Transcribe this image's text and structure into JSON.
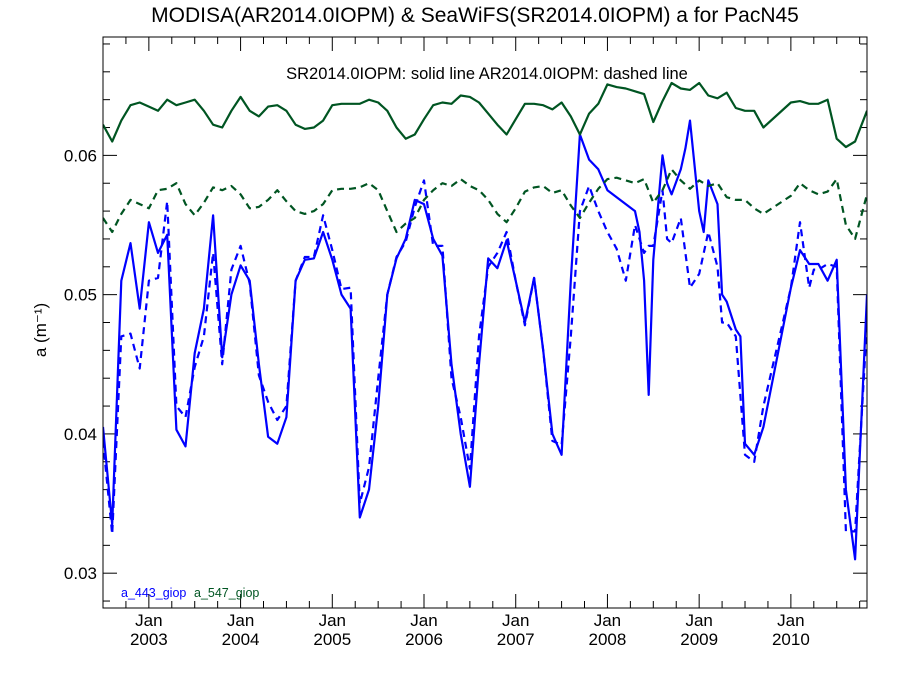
{
  "chart_data": {
    "type": "line",
    "title": "MODISA(AR2014.0IOPM) & SeaWiFS(SR2014.0IOPM)  a for PacN45",
    "subtitle": "SR2014.0IOPM: solid line   AR2014.0IOPM: dashed line",
    "ylabel": "a (m⁻¹)",
    "xlabel": "",
    "xlim": [
      2002.5,
      2010.83
    ],
    "ylim": [
      0.0275,
      0.0685
    ],
    "yticks": [
      "0.03",
      "0.04",
      "0.05",
      "0.06"
    ],
    "ytick_values": [
      0.03,
      0.04,
      0.05,
      0.06
    ],
    "xticks": [
      {
        "month": "Jan",
        "year": "2003",
        "value": 2003.0
      },
      {
        "month": "Jan",
        "year": "2004",
        "value": 2004.0
      },
      {
        "month": "Jan",
        "year": "2005",
        "value": 2005.0
      },
      {
        "month": "Jan",
        "year": "2006",
        "value": 2006.0
      },
      {
        "month": "Jan",
        "year": "2007",
        "value": 2007.0
      },
      {
        "month": "Jan",
        "year": "2008",
        "value": 2008.0
      },
      {
        "month": "Jan",
        "year": "2009",
        "value": 2009.0
      },
      {
        "month": "Jan",
        "year": "2010",
        "value": 2010.0
      }
    ],
    "legend": [
      {
        "label": "a_443_giop",
        "color": "#0000ff"
      },
      {
        "label": "a_547_giop",
        "color": "#005522"
      }
    ],
    "legend_placement": "bottom-left",
    "series": [
      {
        "name": "a_443_giop",
        "source": "SR2014.0IOPM",
        "style": "solid",
        "color": "#0000ff",
        "x": [
          2002.5,
          2002.6,
          2002.7,
          2002.8,
          2002.9,
          2003.0,
          2003.1,
          2003.2,
          2003.3,
          2003.4,
          2003.5,
          2003.6,
          2003.7,
          2003.8,
          2003.9,
          2004.0,
          2004.1,
          2004.2,
          2004.3,
          2004.4,
          2004.5,
          2004.6,
          2004.7,
          2004.8,
          2004.9,
          2005.0,
          2005.1,
          2005.2,
          2005.3,
          2005.4,
          2005.5,
          2005.6,
          2005.7,
          2005.8,
          2005.9,
          2006.0,
          2006.1,
          2006.2,
          2006.3,
          2006.4,
          2006.5,
          2006.6,
          2006.7,
          2006.8,
          2006.9,
          2007.0,
          2007.1,
          2007.2,
          2007.3,
          2007.4,
          2007.5,
          2007.6,
          2007.7,
          2007.8,
          2007.9,
          2008.0,
          2008.3,
          2008.35,
          2008.4,
          2008.45,
          2008.5,
          2008.6,
          2008.65,
          2008.7,
          2008.8,
          2008.85,
          2008.9,
          2009.0,
          2009.05,
          2009.1,
          2009.2,
          2009.25,
          2009.3,
          2009.4,
          2009.45,
          2009.5,
          2009.6,
          2009.7,
          2010.0,
          2010.1,
          2010.2,
          2010.25,
          2010.3,
          2010.4,
          2010.5,
          2010.6,
          2010.7,
          2010.83
        ],
        "y": [
          0.0405,
          0.0335,
          0.051,
          0.0537,
          0.049,
          0.0552,
          0.053,
          0.0543,
          0.0403,
          0.0391,
          0.0458,
          0.049,
          0.0557,
          0.0455,
          0.05,
          0.0521,
          0.051,
          0.045,
          0.0398,
          0.0393,
          0.0412,
          0.051,
          0.0525,
          0.0526,
          0.0545,
          0.0525,
          0.05,
          0.049,
          0.034,
          0.036,
          0.042,
          0.05,
          0.0526,
          0.054,
          0.0568,
          0.0565,
          0.054,
          0.0528,
          0.045,
          0.04,
          0.0362,
          0.045,
          0.0526,
          0.0519,
          0.0539,
          0.051,
          0.048,
          0.0512,
          0.046,
          0.04,
          0.0385,
          0.051,
          0.0615,
          0.0597,
          0.059,
          0.0575,
          0.056,
          0.0545,
          0.051,
          0.0428,
          0.0525,
          0.06,
          0.058,
          0.0572,
          0.059,
          0.0605,
          0.0625,
          0.056,
          0.0545,
          0.0582,
          0.0565,
          0.05,
          0.0495,
          0.0475,
          0.047,
          0.0393,
          0.0385,
          0.0405,
          0.0505,
          0.0532,
          0.0522,
          0.0522,
          0.0522,
          0.051,
          0.0525,
          0.036,
          0.031,
          0.05
        ]
      },
      {
        "name": "a_443_giop",
        "source": "AR2014.0IOPM",
        "style": "dashed",
        "color": "#0000ff",
        "x": [
          2002.5,
          2002.6,
          2002.7,
          2002.8,
          2002.9,
          2003.0,
          2003.1,
          2003.2,
          2003.3,
          2003.4,
          2003.5,
          2003.6,
          2003.7,
          2003.8,
          2003.9,
          2004.0,
          2004.1,
          2004.2,
          2004.3,
          2004.4,
          2004.5,
          2004.6,
          2004.7,
          2004.8,
          2004.9,
          2005.0,
          2005.1,
          2005.2,
          2005.3,
          2005.4,
          2005.5,
          2005.6,
          2005.7,
          2005.8,
          2005.9,
          2006.0,
          2006.1,
          2006.2,
          2006.3,
          2006.4,
          2006.5,
          2006.6,
          2006.7,
          2006.8,
          2006.9,
          2007.0,
          2007.1,
          2007.2,
          2007.3,
          2007.4,
          2007.5,
          2007.6,
          2007.7,
          2007.8,
          2007.9,
          2008.0,
          2008.1,
          2008.2,
          2008.3,
          2008.4,
          2008.45,
          2008.5,
          2008.6,
          2008.65,
          2008.7,
          2008.8,
          2008.9,
          2009.0,
          2009.1,
          2009.2,
          2009.25,
          2009.3,
          2009.4,
          2009.5,
          2009.6,
          2009.7,
          2010.0,
          2010.1,
          2010.2,
          2010.25,
          2010.3,
          2010.4,
          2010.5,
          2010.6,
          2010.7,
          2010.83
        ],
        "y": [
          0.0395,
          0.0328,
          0.047,
          0.0472,
          0.0447,
          0.051,
          0.0512,
          0.0567,
          0.042,
          0.0412,
          0.0448,
          0.047,
          0.053,
          0.045,
          0.0518,
          0.0535,
          0.0508,
          0.0442,
          0.0423,
          0.041,
          0.042,
          0.051,
          0.0527,
          0.0527,
          0.0557,
          0.0532,
          0.0504,
          0.0505,
          0.035,
          0.0376,
          0.044,
          0.05,
          0.0527,
          0.0538,
          0.0563,
          0.0582,
          0.0535,
          0.0535,
          0.044,
          0.0412,
          0.0375,
          0.047,
          0.052,
          0.053,
          0.0545,
          0.051,
          0.0478,
          0.0512,
          0.046,
          0.0395,
          0.0392,
          0.047,
          0.056,
          0.0578,
          0.056,
          0.0545,
          0.0533,
          0.051,
          0.055,
          0.053,
          0.0535,
          0.0535,
          0.0575,
          0.054,
          0.0537,
          0.0555,
          0.0505,
          0.0515,
          0.0545,
          0.052,
          0.048,
          0.048,
          0.047,
          0.0385,
          0.038,
          0.042,
          0.0505,
          0.0552,
          0.0505,
          0.0518,
          0.0518,
          0.0522,
          0.052,
          0.033,
          0.033,
          0.048
        ]
      },
      {
        "name": "a_547_giop",
        "source": "SR2014.0IOPM",
        "style": "solid",
        "color": "#005522",
        "x": [
          2002.5,
          2002.6,
          2002.7,
          2002.8,
          2002.9,
          2003.0,
          2003.1,
          2003.2,
          2003.3,
          2003.4,
          2003.5,
          2003.6,
          2003.7,
          2003.8,
          2003.9,
          2004.0,
          2004.1,
          2004.2,
          2004.3,
          2004.4,
          2004.5,
          2004.6,
          2004.7,
          2004.8,
          2004.9,
          2005.0,
          2005.1,
          2005.2,
          2005.3,
          2005.4,
          2005.5,
          2005.6,
          2005.7,
          2005.8,
          2005.9,
          2006.0,
          2006.1,
          2006.2,
          2006.3,
          2006.4,
          2006.5,
          2006.6,
          2006.7,
          2006.8,
          2006.9,
          2007.0,
          2007.1,
          2007.2,
          2007.3,
          2007.4,
          2007.5,
          2007.6,
          2007.7,
          2007.8,
          2007.9,
          2008.0,
          2008.1,
          2008.2,
          2008.3,
          2008.4,
          2008.5,
          2008.6,
          2008.7,
          2008.8,
          2008.9,
          2009.0,
          2009.1,
          2009.2,
          2009.3,
          2009.4,
          2009.5,
          2009.6,
          2009.7,
          2010.0,
          2010.1,
          2010.2,
          2010.3,
          2010.4,
          2010.5,
          2010.6,
          2010.7,
          2010.83
        ],
        "y": [
          0.0622,
          0.061,
          0.0625,
          0.0636,
          0.0638,
          0.0635,
          0.0632,
          0.064,
          0.0636,
          0.0638,
          0.064,
          0.0632,
          0.0622,
          0.062,
          0.0632,
          0.0642,
          0.0632,
          0.0628,
          0.0635,
          0.0636,
          0.0632,
          0.0622,
          0.0619,
          0.062,
          0.0625,
          0.0636,
          0.0637,
          0.0637,
          0.0637,
          0.064,
          0.0638,
          0.0632,
          0.062,
          0.0612,
          0.0615,
          0.0626,
          0.0636,
          0.0638,
          0.0637,
          0.0643,
          0.0642,
          0.0638,
          0.063,
          0.0622,
          0.0615,
          0.0626,
          0.0637,
          0.0637,
          0.0636,
          0.0633,
          0.0638,
          0.0628,
          0.0615,
          0.063,
          0.0637,
          0.0651,
          0.0649,
          0.0648,
          0.0646,
          0.0644,
          0.0624,
          0.0639,
          0.0652,
          0.0648,
          0.0647,
          0.0652,
          0.0643,
          0.0641,
          0.0645,
          0.0634,
          0.0632,
          0.0632,
          0.062,
          0.0638,
          0.0639,
          0.0637,
          0.0637,
          0.064,
          0.0612,
          0.0606,
          0.061,
          0.0632
        ]
      },
      {
        "name": "a_547_giop",
        "source": "AR2014.0IOPM",
        "style": "dashed",
        "color": "#005522",
        "x": [
          2002.5,
          2002.6,
          2002.7,
          2002.8,
          2002.9,
          2003.0,
          2003.1,
          2003.2,
          2003.3,
          2003.4,
          2003.5,
          2003.6,
          2003.7,
          2003.8,
          2003.9,
          2004.0,
          2004.1,
          2004.2,
          2004.3,
          2004.4,
          2004.5,
          2004.6,
          2004.7,
          2004.8,
          2004.9,
          2005.0,
          2005.1,
          2005.2,
          2005.3,
          2005.4,
          2005.5,
          2005.6,
          2005.7,
          2005.8,
          2005.9,
          2006.0,
          2006.1,
          2006.2,
          2006.3,
          2006.4,
          2006.5,
          2006.6,
          2006.7,
          2006.8,
          2006.9,
          2007.0,
          2007.1,
          2007.2,
          2007.3,
          2007.4,
          2007.5,
          2007.6,
          2007.7,
          2007.8,
          2007.9,
          2008.0,
          2008.1,
          2008.2,
          2008.3,
          2008.4,
          2008.5,
          2008.6,
          2008.7,
          2008.8,
          2008.9,
          2009.0,
          2009.1,
          2009.2,
          2009.3,
          2009.4,
          2009.5,
          2009.6,
          2009.7,
          2010.0,
          2010.1,
          2010.2,
          2010.3,
          2010.4,
          2010.5,
          2010.6,
          2010.7,
          2010.83
        ],
        "y": [
          0.0555,
          0.0545,
          0.0558,
          0.0568,
          0.0565,
          0.0562,
          0.0575,
          0.0576,
          0.058,
          0.0565,
          0.0557,
          0.0566,
          0.0577,
          0.0575,
          0.0578,
          0.0572,
          0.0562,
          0.0563,
          0.0568,
          0.0575,
          0.0567,
          0.056,
          0.0558,
          0.056,
          0.0565,
          0.0575,
          0.0576,
          0.0576,
          0.0577,
          0.058,
          0.0575,
          0.056,
          0.0545,
          0.0551,
          0.0555,
          0.0568,
          0.0575,
          0.058,
          0.0578,
          0.0583,
          0.0578,
          0.0575,
          0.0568,
          0.0558,
          0.0552,
          0.0562,
          0.0574,
          0.0577,
          0.0578,
          0.0573,
          0.0575,
          0.0564,
          0.0555,
          0.0566,
          0.0576,
          0.0583,
          0.0584,
          0.0582,
          0.058,
          0.0583,
          0.0566,
          0.0575,
          0.059,
          0.0582,
          0.0576,
          0.0582,
          0.0578,
          0.058,
          0.057,
          0.0568,
          0.0568,
          0.0562,
          0.0558,
          0.0571,
          0.058,
          0.0575,
          0.0572,
          0.0574,
          0.0583,
          0.055,
          0.054,
          0.0572
        ]
      }
    ]
  }
}
